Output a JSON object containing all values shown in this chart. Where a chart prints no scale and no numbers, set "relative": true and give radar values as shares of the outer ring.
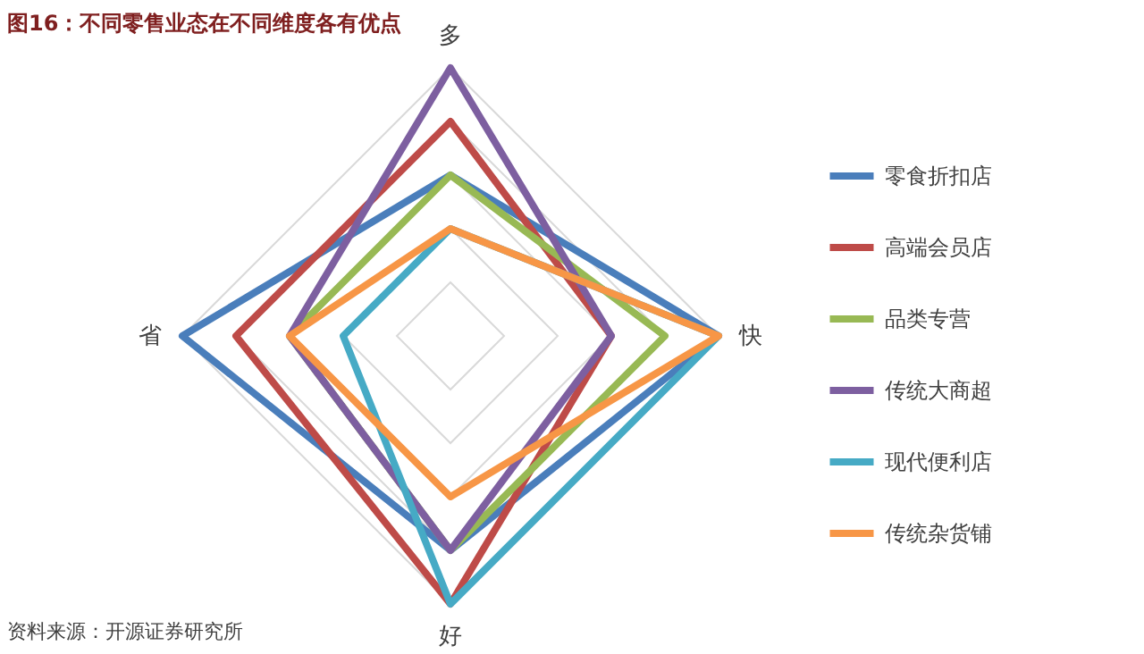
{
  "chart_data": {
    "type": "radar",
    "title": "图16：不同零售业态在不同维度各有优点",
    "categories": [
      "多",
      "快",
      "好",
      "省"
    ],
    "relative": true,
    "grid": true,
    "legend": "right",
    "annotations": [
      "资料来源：开源证券研究所"
    ],
    "series": [
      {
        "name": "零食折扣店",
        "color": "#4a7ebb",
        "values": [
          0.6,
          1.0,
          0.8,
          1.0
        ]
      },
      {
        "name": "高端会员店",
        "color": "#be4b48",
        "values": [
          0.8,
          0.6,
          1.0,
          0.8
        ]
      },
      {
        "name": "品类专营",
        "color": "#98b954",
        "values": [
          0.6,
          0.8,
          0.8,
          0.6
        ]
      },
      {
        "name": "传统大商超",
        "color": "#7d5fa0",
        "values": [
          1.0,
          0.6,
          0.8,
          0.6
        ]
      },
      {
        "name": "现代便利店",
        "color": "#46aac5",
        "values": [
          0.4,
          1.0,
          1.0,
          0.4
        ]
      },
      {
        "name": "传统杂货铺",
        "color": "#f79646",
        "values": [
          0.4,
          1.0,
          0.6,
          0.6
        ]
      }
    ]
  }
}
